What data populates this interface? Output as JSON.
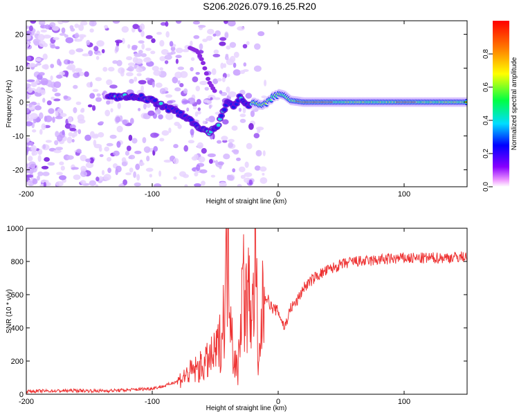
{
  "figure": {
    "title": "S206.2026.079.16.25.R20"
  },
  "chart_data": [
    {
      "type": "heatmap",
      "xlabel": "Height of straight line (km)",
      "ylabel": "Frequency (Hz)",
      "xlim": [
        -200,
        150
      ],
      "ylim": [
        -25,
        24
      ],
      "xticks": [
        -200,
        -100,
        0,
        100
      ],
      "yticks": [
        -20,
        -10,
        0,
        10,
        20
      ],
      "colorbar": {
        "label": "Normalized spectral amplitude",
        "range": [
          0,
          1
        ],
        "ticks": [
          0.0,
          0.2,
          0.4,
          0.6,
          0.8
        ]
      },
      "ridge": [
        [
          -135,
          1.5
        ],
        [
          -120,
          1.5
        ],
        [
          -110,
          1.5
        ],
        [
          -100,
          0.5
        ],
        [
          -90,
          -1.5
        ],
        [
          -80,
          -3
        ],
        [
          -70,
          -5
        ],
        [
          -62,
          -8
        ],
        [
          -55,
          -9
        ],
        [
          -48,
          -7.5
        ],
        [
          -44,
          -3
        ],
        [
          -40,
          0.5
        ],
        [
          -35,
          -1
        ],
        [
          -30,
          1.5
        ],
        [
          -25,
          -1
        ],
        [
          -20,
          -0.5
        ],
        [
          -10,
          -0.5
        ],
        [
          -5,
          1
        ],
        [
          0,
          2.5
        ],
        [
          5,
          2
        ],
        [
          10,
          0.5
        ],
        [
          20,
          0
        ],
        [
          40,
          0
        ],
        [
          60,
          0
        ],
        [
          80,
          0
        ],
        [
          100,
          0
        ],
        [
          120,
          0
        ],
        [
          150,
          0
        ]
      ],
      "upper_branch": [
        [
          -70,
          16
        ],
        [
          -64,
          15
        ],
        [
          -60,
          12
        ],
        [
          -55,
          6
        ],
        [
          -50,
          3
        ]
      ]
    },
    {
      "type": "line",
      "xlabel": "Height of straight line (km)",
      "ylabel": "SNR (10 * v/v)",
      "xlim": [
        -200,
        150
      ],
      "ylim": [
        0,
        1000
      ],
      "xticks": [
        -200,
        -100,
        0,
        100
      ],
      "yticks": [
        0,
        200,
        400,
        600,
        800,
        1000
      ],
      "color": "#ee3333",
      "series": [
        {
          "name": "SNR",
          "x": [
            -200,
            -180,
            -160,
            -140,
            -120,
            -100,
            -90,
            -80,
            -70,
            -60,
            -50,
            -45,
            -42,
            -40,
            -38,
            -36,
            -34,
            -32,
            -30,
            -28,
            -26,
            -24,
            -22,
            -20,
            -18,
            -16,
            -14,
            -12,
            -10,
            -5,
            0,
            5,
            10,
            15,
            20,
            30,
            40,
            50,
            60,
            70,
            80,
            90,
            100,
            110,
            120,
            130,
            140,
            150
          ],
          "y": [
            18,
            20,
            22,
            20,
            25,
            35,
            50,
            80,
            130,
            170,
            240,
            340,
            600,
            920,
            700,
            250,
            200,
            120,
            480,
            700,
            520,
            580,
            560,
            450,
            1000,
            80,
            350,
            550,
            600,
            520,
            500,
            400,
            520,
            560,
            640,
            710,
            750,
            780,
            800,
            800,
            810,
            815,
            820,
            818,
            820,
            822,
            825,
            830
          ]
        }
      ]
    }
  ]
}
